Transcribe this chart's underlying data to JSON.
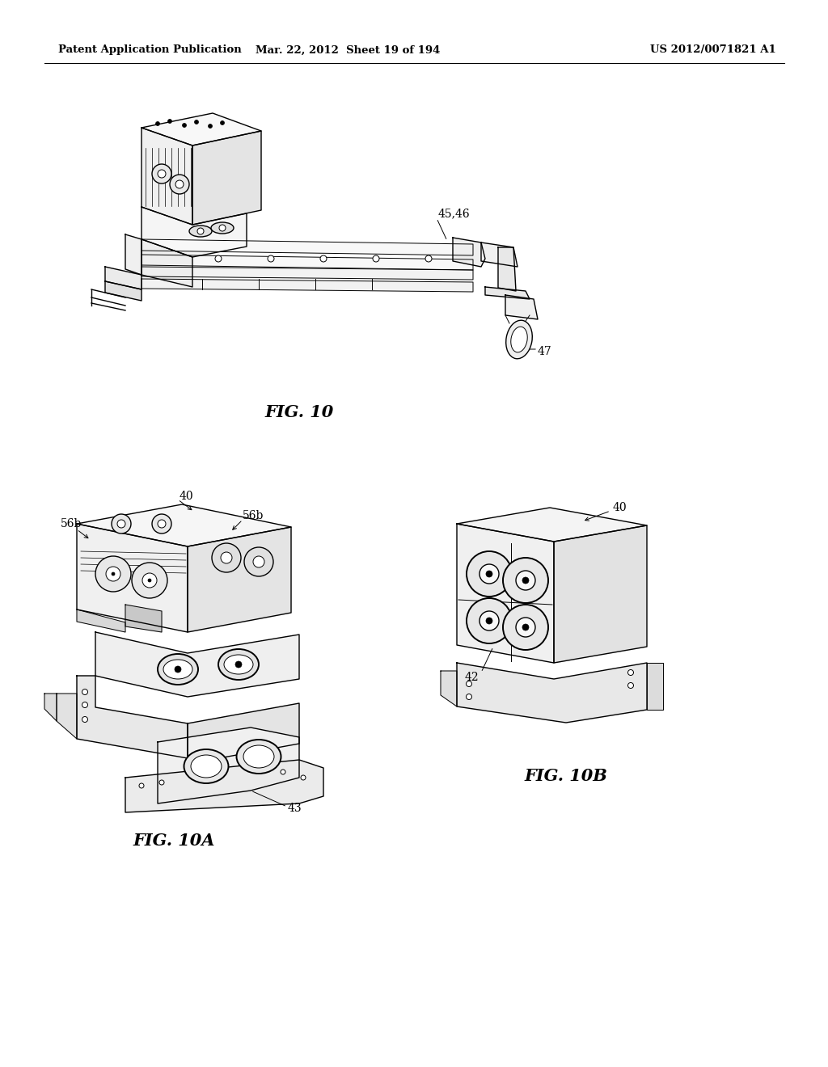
{
  "background_color": "#ffffff",
  "page_width": 10.24,
  "page_height": 13.2,
  "header_left": "Patent Application Publication",
  "header_center": "Mar. 22, 2012  Sheet 19 of 194",
  "header_right": "US 2012/0071821 A1",
  "fig10_caption": "FIG. 10",
  "fig10a_caption": "FIG. 10A",
  "fig10b_caption": "FIG. 10B",
  "caption_fontsize": 15,
  "header_fontsize": 9.5,
  "label_fontsize": 10
}
